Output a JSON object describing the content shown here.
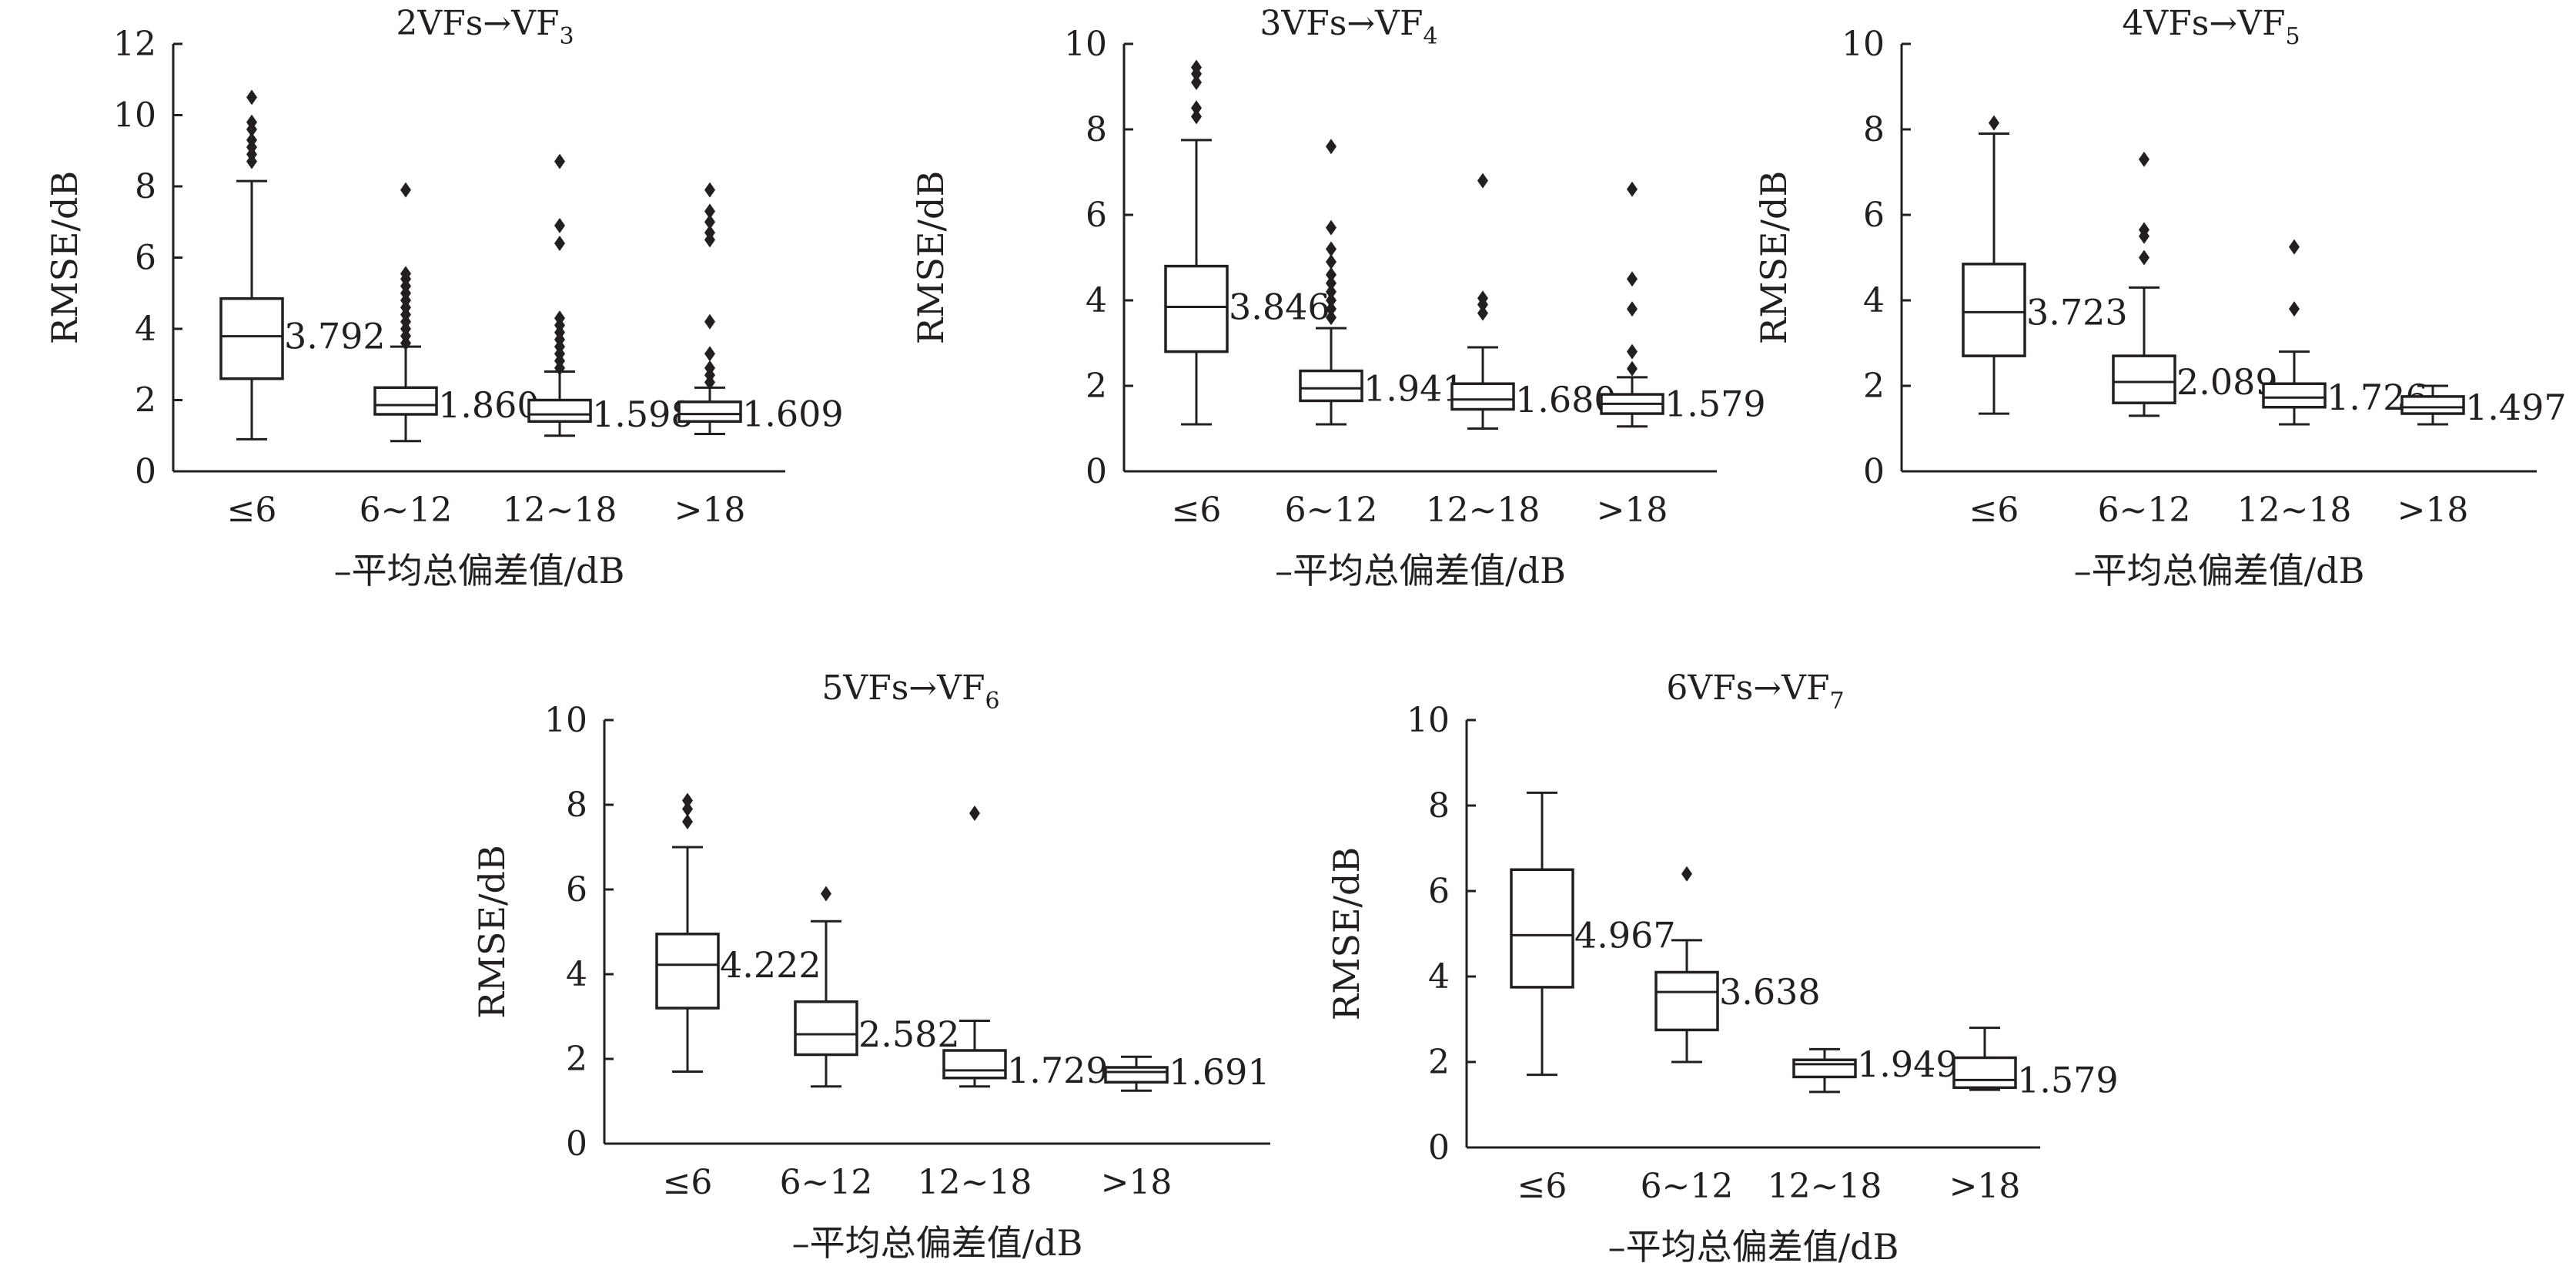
{
  "chart_data": [
    {
      "type": "box",
      "title": "2VFs→VF3",
      "title_parts": {
        "main": "2VFs→VF",
        "sub": "3"
      },
      "xlabel": "–平均总偏差值/dB",
      "ylabel": "RMSE/dB",
      "ylim": [
        0,
        12
      ],
      "yticks": [
        "0",
        "2",
        "4",
        "6",
        "8",
        "10",
        "12"
      ],
      "categories": [
        "≤6",
        "6~12",
        "12~18",
        ">18"
      ],
      "boxes": [
        {
          "min": 0.9,
          "q1": 2.6,
          "median": 3.792,
          "q3": 4.85,
          "max": 8.15,
          "label": "3.792",
          "outliers": [
            8.7,
            8.9,
            9.1,
            9.3,
            9.6,
            9.8,
            10.5
          ]
        },
        {
          "min": 0.85,
          "q1": 1.6,
          "median": 1.86,
          "q3": 2.35,
          "max": 3.5,
          "label": "1.860",
          "outliers": [
            3.6,
            3.8,
            4.0,
            4.2,
            4.4,
            4.6,
            4.8,
            5.0,
            5.2,
            5.4,
            5.55,
            7.9
          ]
        },
        {
          "min": 1.0,
          "q1": 1.4,
          "median": 1.598,
          "q3": 2.0,
          "max": 2.8,
          "label": "1.598",
          "outliers": [
            2.9,
            3.1,
            3.3,
            3.5,
            3.7,
            3.9,
            4.1,
            4.3,
            6.4,
            6.9,
            8.7
          ]
        },
        {
          "min": 1.05,
          "q1": 1.4,
          "median": 1.609,
          "q3": 1.95,
          "max": 2.35,
          "label": "1.609",
          "outliers": [
            2.5,
            2.7,
            2.9,
            3.3,
            4.2,
            6.5,
            6.7,
            7.0,
            7.3,
            7.9
          ]
        }
      ]
    },
    {
      "type": "box",
      "title": "3VFs→VF4",
      "title_parts": {
        "main": "3VFs→VF",
        "sub": "4"
      },
      "xlabel": "–平均总偏差值/dB",
      "ylabel": "RMSE/dB",
      "ylim": [
        0,
        10
      ],
      "yticks": [
        "0",
        "2",
        "4",
        "6",
        "8",
        "10"
      ],
      "categories": [
        "≤6",
        "6~12",
        "12~18",
        ">18"
      ],
      "boxes": [
        {
          "min": 1.1,
          "q1": 2.8,
          "median": 3.846,
          "q3": 4.8,
          "max": 7.75,
          "label": "3.846",
          "outliers": [
            8.3,
            8.5,
            9.1,
            9.3,
            9.45
          ]
        },
        {
          "min": 1.1,
          "q1": 1.65,
          "median": 1.941,
          "q3": 2.35,
          "max": 3.35,
          "label": "1.941",
          "outliers": [
            3.6,
            3.8,
            4.0,
            4.2,
            4.4,
            4.6,
            4.9,
            5.2,
            5.7,
            7.6
          ]
        },
        {
          "min": 1.0,
          "q1": 1.45,
          "median": 1.68,
          "q3": 2.05,
          "max": 2.9,
          "label": "1.680",
          "outliers": [
            3.7,
            3.9,
            4.05,
            6.8
          ]
        },
        {
          "min": 1.05,
          "q1": 1.35,
          "median": 1.579,
          "q3": 1.8,
          "max": 2.2,
          "label": "1.579",
          "outliers": [
            2.4,
            2.8,
            3.8,
            4.5,
            6.6
          ]
        }
      ]
    },
    {
      "type": "box",
      "title": "4VFs→VF5",
      "title_parts": {
        "main": "4VFs→VF",
        "sub": "5"
      },
      "xlabel": "–平均总偏差值/dB",
      "ylabel": "RMSE/dB",
      "ylim": [
        0,
        10
      ],
      "yticks": [
        "0",
        "2",
        "4",
        "6",
        "8",
        "10"
      ],
      "categories": [
        "≤6",
        "6~12",
        "12~18",
        ">18"
      ],
      "boxes": [
        {
          "min": 1.35,
          "q1": 2.7,
          "median": 3.723,
          "q3": 4.85,
          "max": 7.9,
          "label": "3.723",
          "outliers": [
            8.15
          ]
        },
        {
          "min": 1.3,
          "q1": 1.6,
          "median": 2.089,
          "q3": 2.7,
          "max": 4.3,
          "label": "2.089",
          "outliers": [
            5.0,
            5.5,
            5.65,
            7.3
          ]
        },
        {
          "min": 1.1,
          "q1": 1.5,
          "median": 1.726,
          "q3": 2.05,
          "max": 2.8,
          "label": "1.726",
          "outliers": [
            3.8,
            5.25
          ]
        },
        {
          "min": 1.1,
          "q1": 1.35,
          "median": 1.497,
          "q3": 1.75,
          "max": 2.0,
          "label": "1.497",
          "outliers": []
        }
      ]
    },
    {
      "type": "box",
      "title": "5VFs→VF6",
      "title_parts": {
        "main": "5VFs→VF",
        "sub": "6"
      },
      "xlabel": "–平均总偏差值/dB",
      "ylabel": "RMSE/dB",
      "ylim": [
        0,
        10
      ],
      "yticks": [
        "0",
        "2",
        "4",
        "6",
        "8",
        "10"
      ],
      "categories": [
        "≤6",
        "6~12",
        "12~18",
        ">18"
      ],
      "boxes": [
        {
          "min": 1.7,
          "q1": 3.2,
          "median": 4.222,
          "q3": 4.95,
          "max": 7.0,
          "label": "4.222",
          "outliers": [
            7.6,
            7.9,
            8.1
          ]
        },
        {
          "min": 1.35,
          "q1": 2.1,
          "median": 2.582,
          "q3": 3.35,
          "max": 5.25,
          "label": "2.582",
          "outliers": [
            5.9
          ]
        },
        {
          "min": 1.35,
          "q1": 1.55,
          "median": 1.729,
          "q3": 2.2,
          "max": 2.9,
          "label": "1.729",
          "outliers": [
            7.8
          ]
        },
        {
          "min": 1.25,
          "q1": 1.45,
          "median": 1.691,
          "q3": 1.8,
          "max": 2.05,
          "label": "1.691",
          "outliers": []
        }
      ]
    },
    {
      "type": "box",
      "title": "6VFs→VF7",
      "title_parts": {
        "main": "6VFs→VF",
        "sub": "7"
      },
      "xlabel": "–平均总偏差值/dB",
      "ylabel": "RMSE/dB",
      "ylim": [
        0,
        10
      ],
      "yticks": [
        "0",
        "2",
        "4",
        "6",
        "8",
        "10"
      ],
      "categories": [
        "≤6",
        "6~12",
        "12~18",
        ">18"
      ],
      "boxes": [
        {
          "min": 1.7,
          "q1": 3.75,
          "median": 4.967,
          "q3": 6.5,
          "max": 8.3,
          "label": "4.967",
          "outliers": []
        },
        {
          "min": 2.0,
          "q1": 2.75,
          "median": 3.638,
          "q3": 4.1,
          "max": 4.85,
          "label": "3.638",
          "outliers": [
            6.4
          ]
        },
        {
          "min": 1.3,
          "q1": 1.65,
          "median": 1.949,
          "q3": 2.05,
          "max": 2.3,
          "label": "1.949",
          "outliers": []
        },
        {
          "min": 1.35,
          "q1": 1.4,
          "median": 1.579,
          "q3": 2.1,
          "max": 2.8,
          "label": "1.579",
          "outliers": []
        }
      ]
    }
  ]
}
